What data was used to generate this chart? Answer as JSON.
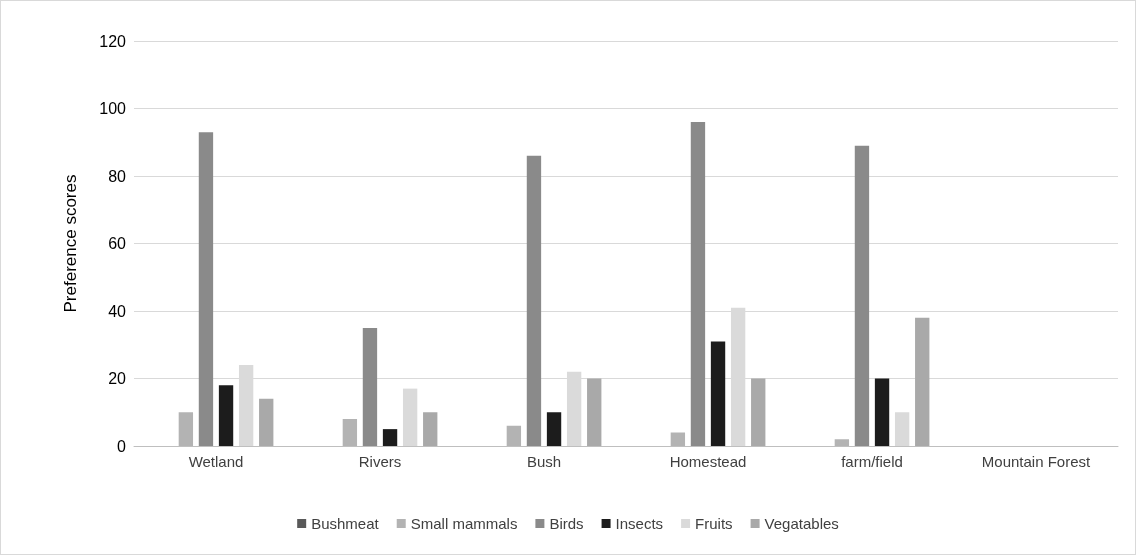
{
  "chart_data": {
    "type": "bar",
    "ylabel": "Preference scores",
    "categories": [
      "Wetland",
      "Rivers",
      "Bush",
      "Homestead",
      "farm/field",
      "Mountain Forest"
    ],
    "series": [
      {
        "name": "Bushmeat",
        "color": "#595959",
        "values": [
          0,
          0,
          0,
          0,
          0,
          0
        ]
      },
      {
        "name": "Small mammals",
        "color": "#b3b3b3",
        "values": [
          10,
          8,
          6,
          4,
          2,
          0
        ]
      },
      {
        "name": "Birds",
        "color": "#8a8a8a",
        "values": [
          93,
          35,
          86,
          96,
          89,
          0
        ]
      },
      {
        "name": "Insects",
        "color": "#1c1c1c",
        "values": [
          18,
          5,
          10,
          31,
          20,
          0
        ]
      },
      {
        "name": "Fruits",
        "color": "#dadada",
        "values": [
          24,
          17,
          22,
          41,
          10,
          0
        ]
      },
      {
        "name": "Vegatables",
        "color": "#a9a9a9",
        "values": [
          14,
          10,
          20,
          20,
          38,
          0
        ]
      }
    ],
    "ylim": [
      0,
      120
    ],
    "yticks": [
      0,
      20,
      40,
      60,
      80,
      100,
      120
    ],
    "grid": "y",
    "legend": "bottom"
  }
}
